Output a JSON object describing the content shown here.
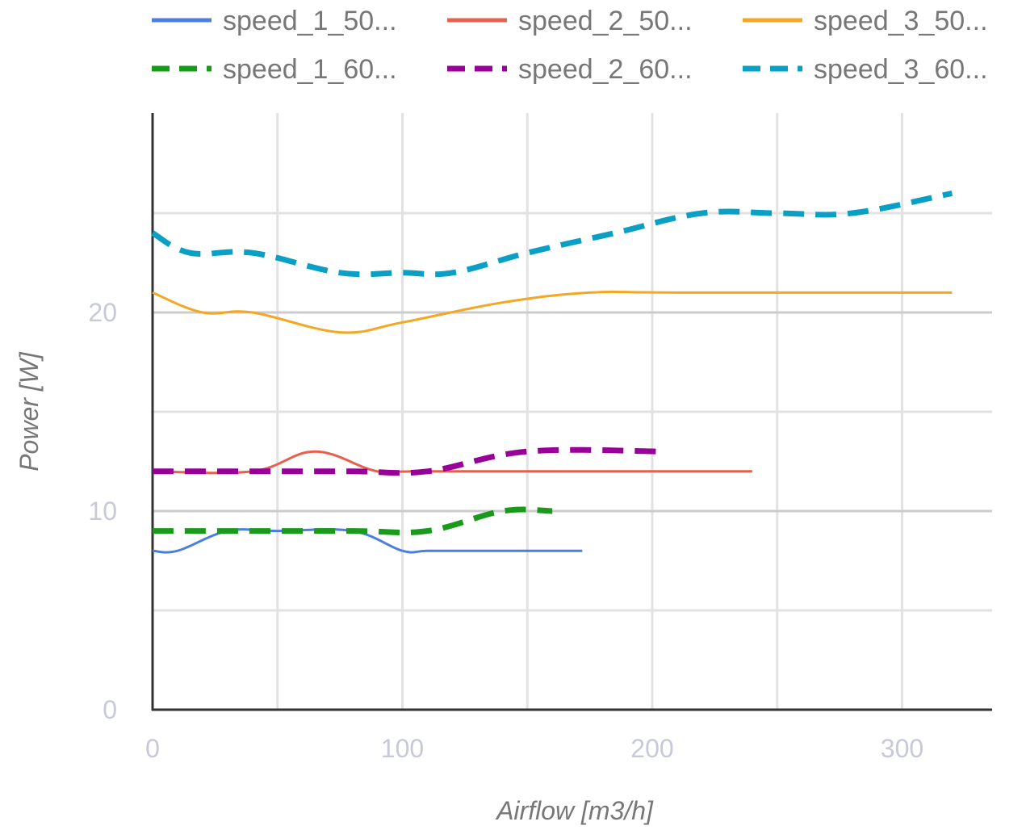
{
  "chart_data": {
    "type": "line",
    "title": "",
    "xlabel": "Airflow [m3/h]",
    "ylabel": "Power [W]",
    "xlim": [
      0,
      340
    ],
    "ylim": [
      0,
      30
    ],
    "x_ticks": [
      "0",
      "100",
      "200",
      "300"
    ],
    "y_ticks": [
      "0",
      "10",
      "20"
    ],
    "grid": true,
    "legend_position": "top",
    "series": [
      {
        "name": "speed_1_50...",
        "color": "#4a7fe0",
        "dash": "solid",
        "x": [
          0,
          10,
          30,
          50,
          80,
          100,
          110,
          130,
          172
        ],
        "y": [
          8,
          8,
          9,
          9,
          9,
          8,
          8,
          8,
          8
        ]
      },
      {
        "name": "speed_2_50...",
        "color": "#e8604c",
        "dash": "solid",
        "x": [
          0,
          40,
          65,
          90,
          110,
          240
        ],
        "y": [
          12,
          12,
          13,
          12,
          12,
          12
        ]
      },
      {
        "name": "speed_3_50...",
        "color": "#f5a623",
        "dash": "solid",
        "x": [
          0,
          20,
          40,
          75,
          100,
          140,
          175,
          210,
          320
        ],
        "y": [
          21,
          20,
          20,
          19,
          19.5,
          20.5,
          21,
          21,
          21
        ]
      },
      {
        "name": "speed_1_60...",
        "color": "#1a9a1a",
        "dash": "dashed",
        "x": [
          0,
          30,
          80,
          110,
          140,
          160
        ],
        "y": [
          9,
          9,
          9,
          9,
          10,
          10
        ]
      },
      {
        "name": "speed_2_60...",
        "color": "#990099",
        "dash": "dashed",
        "x": [
          0,
          40,
          80,
          110,
          150,
          205
        ],
        "y": [
          12,
          12,
          12,
          12,
          13,
          13
        ]
      },
      {
        "name": "speed_3_60...",
        "color": "#0a9fc4",
        "dash": "dashed",
        "x": [
          0,
          15,
          40,
          75,
          100,
          120,
          150,
          185,
          220,
          250,
          280,
          320
        ],
        "y": [
          24,
          23,
          23,
          22,
          22,
          22,
          23,
          24,
          25,
          25,
          25,
          26
        ]
      }
    ]
  }
}
